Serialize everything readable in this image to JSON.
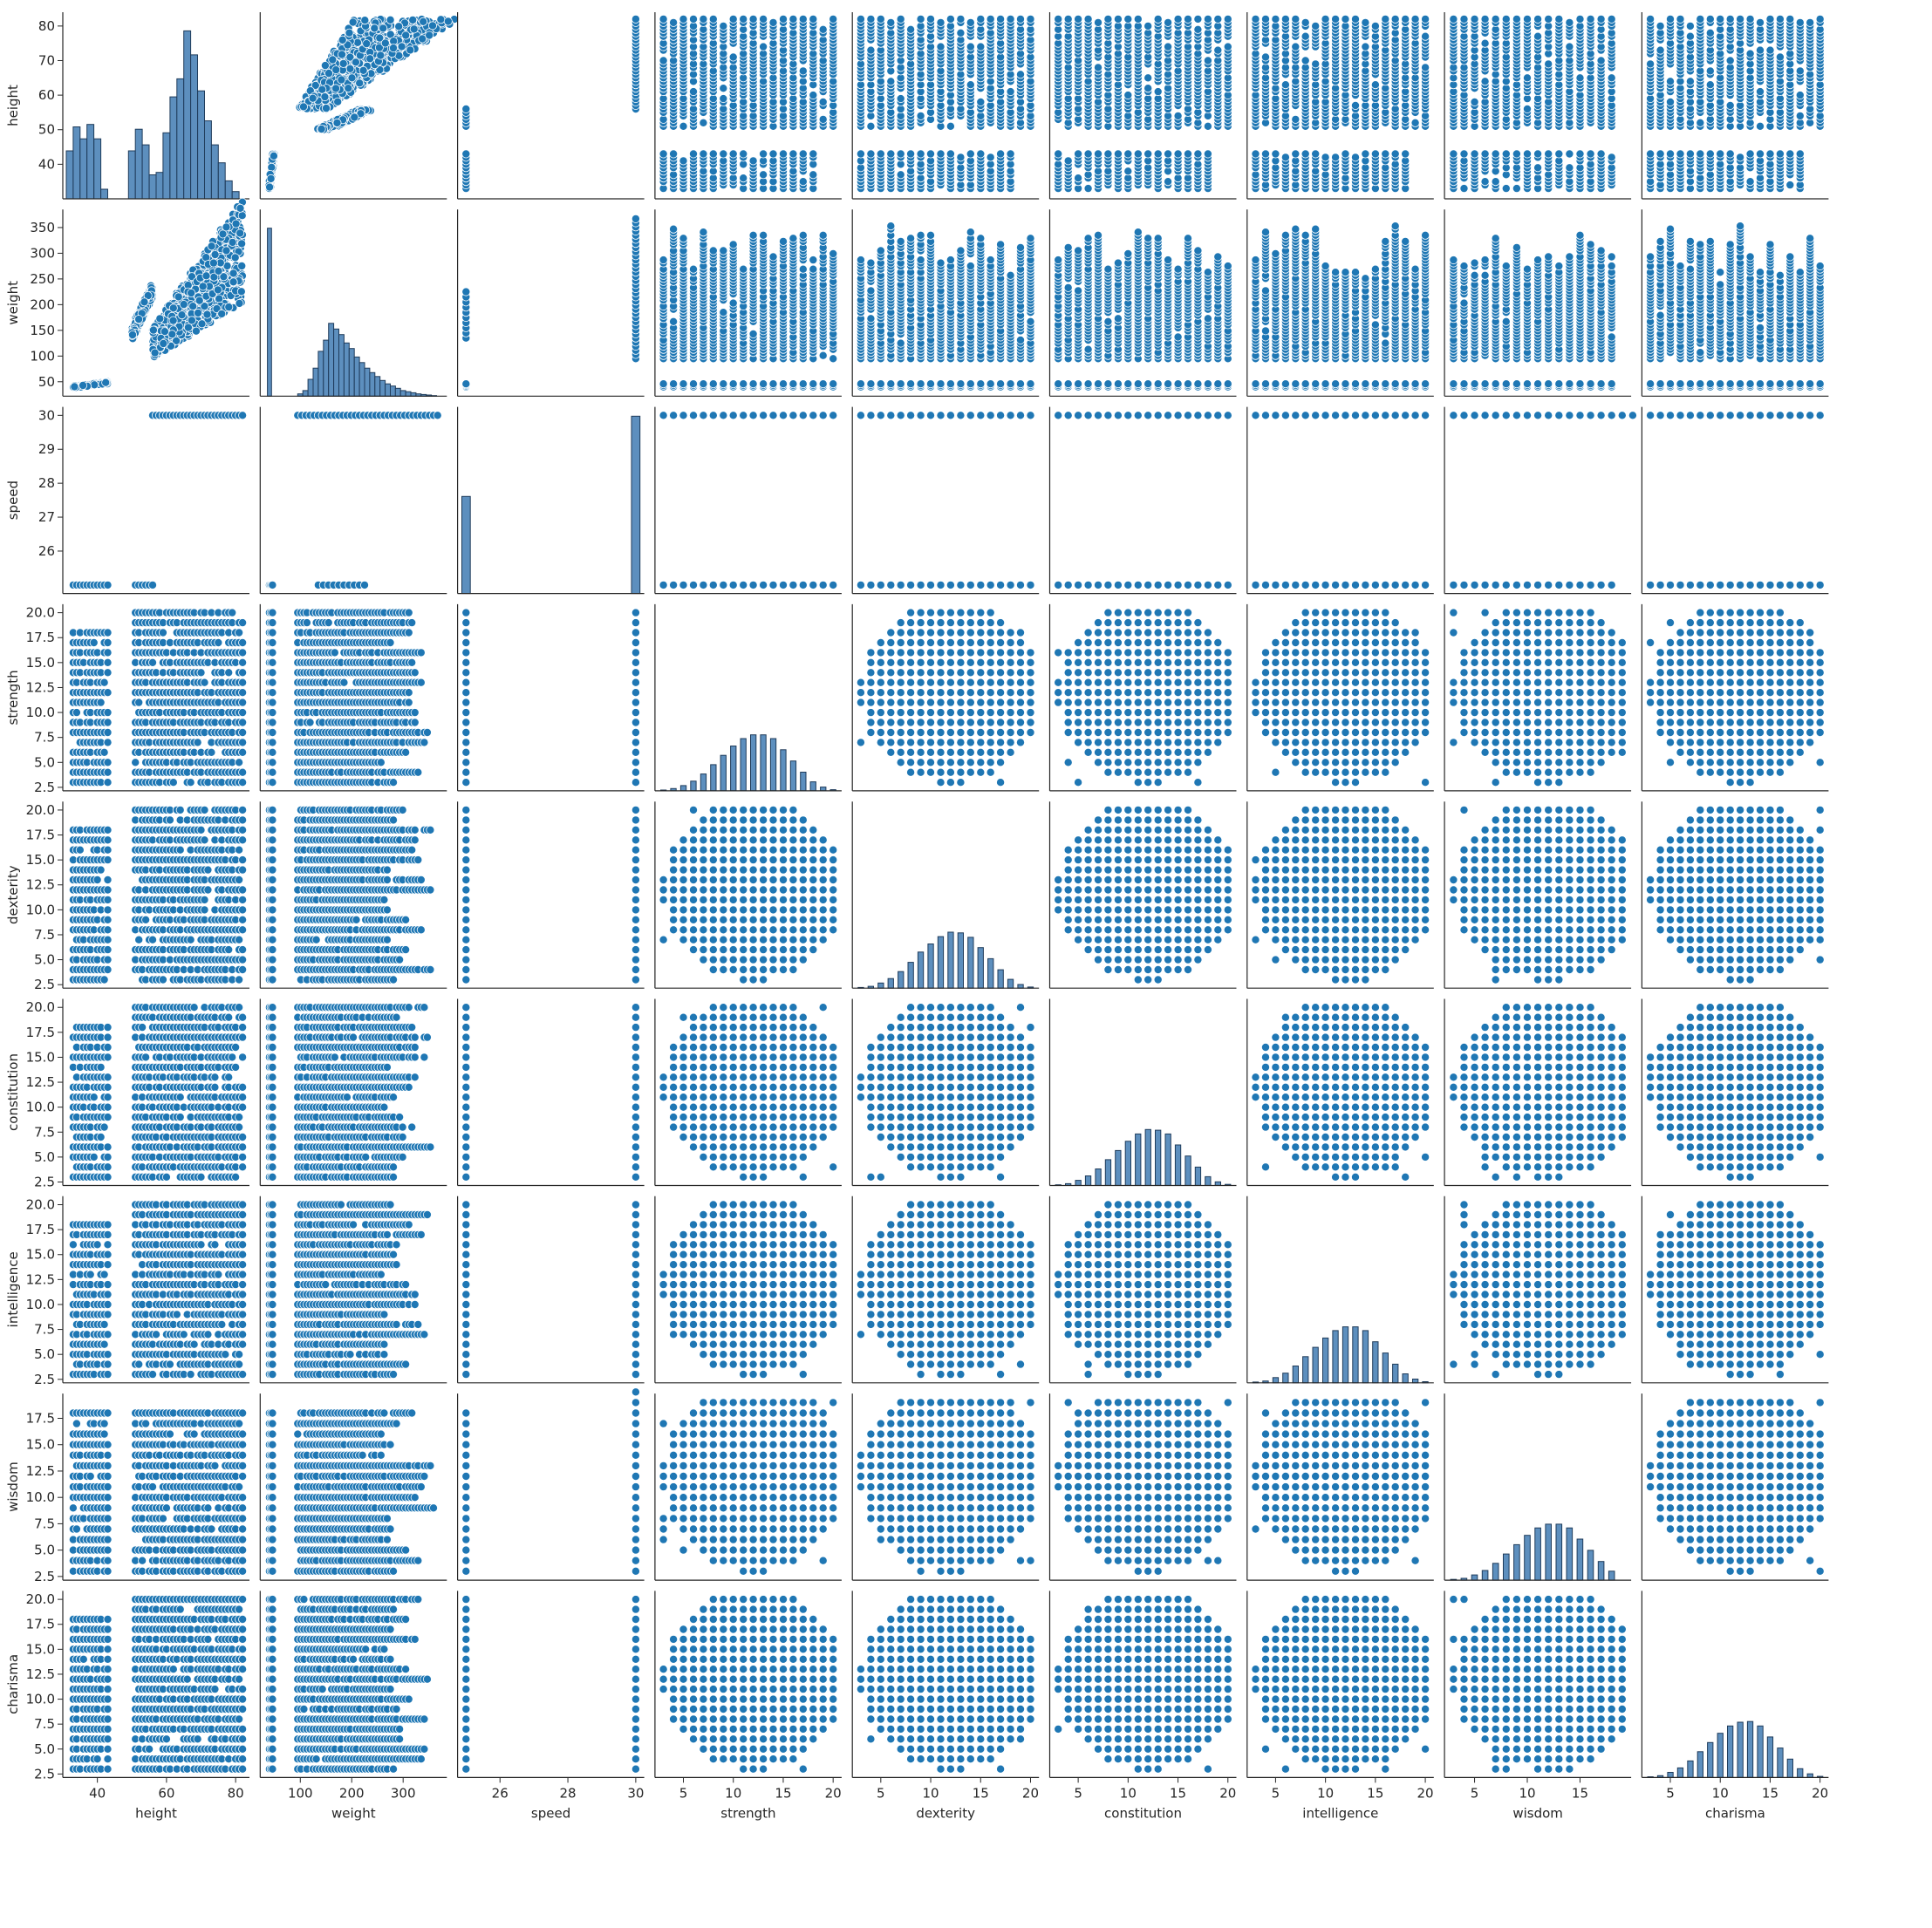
{
  "chart_data": {
    "type": "scatter",
    "subtype": "pairplot",
    "diagonal": "histogram",
    "grid": false,
    "colors": {
      "marker": "#1f77b4",
      "marker_edge": "#ffffff",
      "hist_fill": "#5d8fbe",
      "hist_edge": "#1f3b5a",
      "axis": "#262626"
    },
    "variables": [
      {
        "name": "height",
        "label": "height",
        "range": [
          30,
          84
        ],
        "ticks": [
          40,
          50,
          60,
          70,
          80
        ],
        "tick_labels": [
          "40",
          "50",
          "60",
          "70",
          "80"
        ]
      },
      {
        "name": "weight",
        "label": "weight",
        "range": [
          22,
          385
        ],
        "ticks": [
          50,
          100,
          150,
          200,
          250,
          300,
          350
        ],
        "tick_labels": [
          "50",
          "100",
          "150",
          "200",
          "250",
          "300",
          "350"
        ]
      },
      {
        "name": "speed",
        "label": "speed",
        "range": [
          24.75,
          30.25
        ],
        "ticks": [
          26,
          27,
          28,
          29,
          30
        ],
        "tick_labels": [
          "26",
          "27",
          "28",
          "29",
          "30"
        ]
      },
      {
        "name": "strength",
        "label": "strength",
        "range": [
          2.15,
          20.85
        ],
        "ticks": [
          2.5,
          5,
          7.5,
          10,
          12.5,
          15,
          17.5,
          20
        ],
        "tick_labels": [
          "2.5",
          "5.0",
          "7.5",
          "10.0",
          "12.5",
          "15.0",
          "17.5",
          "20.0"
        ]
      },
      {
        "name": "dexterity",
        "label": "dexterity",
        "range": [
          2.15,
          20.85
        ],
        "ticks": [
          2.5,
          5,
          7.5,
          10,
          12.5,
          15,
          17.5,
          20
        ],
        "tick_labels": [
          "2.5",
          "5.0",
          "7.5",
          "10.0",
          "12.5",
          "15.0",
          "17.5",
          "20.0"
        ]
      },
      {
        "name": "constitution",
        "label": "constitution",
        "range": [
          2.15,
          20.85
        ],
        "ticks": [
          2.5,
          5,
          7.5,
          10,
          12.5,
          15,
          17.5,
          20
        ],
        "tick_labels": [
          "2.5",
          "5.0",
          "7.5",
          "10.0",
          "12.5",
          "15.0",
          "17.5",
          "20.0"
        ]
      },
      {
        "name": "intelligence",
        "label": "intelligence",
        "range": [
          2.15,
          20.85
        ],
        "ticks": [
          2.5,
          5,
          7.5,
          10,
          12.5,
          15,
          17.5,
          20
        ],
        "tick_labels": [
          "2.5",
          "5.0",
          "7.5",
          "10.0",
          "12.5",
          "15.0",
          "17.5",
          "20.0"
        ]
      },
      {
        "name": "wisdom",
        "label": "wisdom",
        "range": [
          2.15,
          19.85
        ],
        "ticks": [
          2.5,
          5,
          7.5,
          10,
          12.5,
          15,
          17.5
        ],
        "tick_labels": [
          "2.5",
          "5.0",
          "7.5",
          "10.0",
          "12.5",
          "15.0",
          "17.5"
        ]
      },
      {
        "name": "charisma",
        "label": "charisma",
        "range": [
          2.15,
          20.85
        ],
        "ticks": [
          2.5,
          5,
          7.5,
          10,
          12.5,
          15,
          17.5,
          20
        ],
        "tick_labels": [
          "2.5",
          "5.0",
          "7.5",
          "10.0",
          "12.5",
          "15.0",
          "17.5",
          "20.0"
        ]
      }
    ],
    "x_tick_labels_bottom": {
      "height": [
        "40",
        "60",
        "80"
      ],
      "weight": [
        "100",
        "200",
        "300"
      ],
      "speed": [
        "26",
        "28",
        "30"
      ],
      "strength": [
        "5",
        "10",
        "15",
        "20"
      ],
      "dexterity": [
        "5",
        "10",
        "15",
        "20"
      ],
      "constitution": [
        "5",
        "10",
        "15",
        "20"
      ],
      "intelligence": [
        "5",
        "10",
        "15",
        "20"
      ],
      "wisdom": [
        "5",
        "10",
        "15"
      ],
      "charisma": [
        "5",
        "10",
        "15",
        "20"
      ]
    },
    "histograms": {
      "height": {
        "bins": [
          32,
          34,
          36,
          38,
          40,
          42,
          44,
          50,
          52,
          54,
          56,
          58,
          60,
          62,
          64,
          66,
          68,
          70,
          72,
          74,
          76,
          78,
          80
        ],
        "counts": [
          40,
          60,
          50,
          62,
          50,
          8,
          0,
          40,
          58,
          45,
          20,
          22,
          55,
          85,
          100,
          140,
          120,
          90,
          65,
          45,
          30,
          15,
          6
        ]
      },
      "weight": {
        "bins": [
          40,
          100,
          110,
          120,
          130,
          140,
          150,
          160,
          170,
          180,
          190,
          200,
          210,
          220,
          230,
          240,
          250,
          260,
          270,
          280,
          290,
          300,
          310,
          320,
          330,
          340,
          350,
          360
        ],
        "counts": [
          300,
          4,
          10,
          30,
          50,
          80,
          100,
          130,
          120,
          110,
          95,
          85,
          70,
          60,
          50,
          42,
          35,
          28,
          22,
          18,
          14,
          10,
          8,
          6,
          4,
          3,
          2,
          1
        ]
      },
      "speed": {
        "bins": [
          25,
          30
        ],
        "counts": [
          230,
          420
        ]
      },
      "strength": {
        "bins": [
          3,
          4,
          5,
          6,
          7,
          8,
          9,
          10,
          11,
          12,
          13,
          14,
          15,
          16,
          17,
          18,
          19,
          20
        ],
        "counts": [
          2,
          6,
          14,
          26,
          45,
          70,
          95,
          120,
          140,
          150,
          150,
          140,
          110,
          80,
          50,
          24,
          10,
          3
        ]
      },
      "dexterity": {
        "bins": [
          3,
          4,
          5,
          6,
          7,
          8,
          9,
          10,
          11,
          12,
          13,
          14,
          15,
          16,
          17,
          18,
          19,
          20
        ],
        "counts": [
          2,
          5,
          14,
          26,
          45,
          70,
          98,
          120,
          140,
          152,
          150,
          138,
          110,
          80,
          50,
          24,
          10,
          3
        ]
      },
      "constitution": {
        "bins": [
          3,
          4,
          5,
          6,
          7,
          8,
          9,
          10,
          11,
          12,
          13,
          14,
          15,
          16,
          17,
          18,
          19,
          20
        ],
        "counts": [
          2,
          5,
          14,
          26,
          45,
          70,
          95,
          120,
          140,
          152,
          150,
          140,
          110,
          80,
          50,
          24,
          10,
          3
        ]
      },
      "intelligence": {
        "bins": [
          3,
          4,
          5,
          6,
          7,
          8,
          9,
          10,
          11,
          12,
          13,
          14,
          15,
          16,
          17,
          18,
          19,
          20
        ],
        "counts": [
          2,
          5,
          14,
          26,
          45,
          70,
          95,
          120,
          140,
          150,
          150,
          140,
          110,
          80,
          50,
          24,
          10,
          3
        ]
      },
      "wisdom": {
        "bins": [
          3,
          4,
          5,
          6,
          7,
          8,
          9,
          10,
          11,
          12,
          13,
          14,
          15,
          16,
          17,
          18
        ],
        "counts": [
          2,
          5,
          14,
          26,
          45,
          70,
          95,
          120,
          140,
          150,
          150,
          140,
          110,
          80,
          50,
          24
        ]
      },
      "charisma": {
        "bins": [
          3,
          4,
          5,
          6,
          7,
          8,
          9,
          10,
          11,
          12,
          13,
          14,
          15,
          16,
          17,
          18,
          19,
          20
        ],
        "counts": [
          2,
          5,
          14,
          26,
          45,
          70,
          95,
          120,
          140,
          150,
          152,
          140,
          110,
          80,
          50,
          24,
          10,
          3
        ]
      }
    }
  }
}
